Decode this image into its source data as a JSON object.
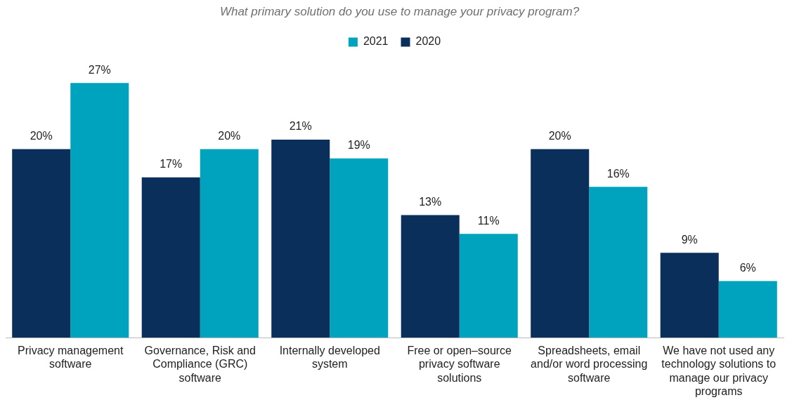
{
  "chart_data": {
    "type": "bar",
    "title": "What primary solution do you use to manage your privacy program?",
    "categories": [
      "Privacy management software",
      "Governance, Risk and Compliance (GRC) software",
      "Internally developed system",
      "Free or open–source privacy software solutions",
      "Spreadsheets, email and/or word processing software",
      "We have not used any technology solutions to manage our privacy programs"
    ],
    "series": [
      {
        "name": "2020",
        "color": "#0b2f5b",
        "values": [
          20,
          17,
          21,
          13,
          20,
          9
        ],
        "value_labels": [
          "20%",
          "17%",
          "21%",
          "13%",
          "20%",
          "9%"
        ]
      },
      {
        "name": "2021",
        "color": "#00a3bd",
        "values": [
          27,
          20,
          19,
          11,
          16,
          6
        ],
        "value_labels": [
          "27%",
          "20%",
          "19%",
          "11%",
          "16%",
          "6%"
        ]
      }
    ],
    "legend": "top",
    "grid": false
  }
}
